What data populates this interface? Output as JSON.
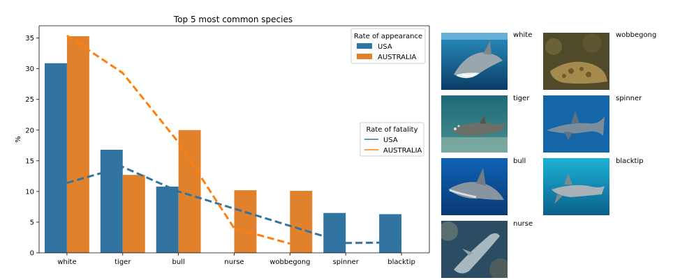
{
  "chart_data": {
    "type": "bar",
    "title": "Top 5 most common species",
    "xlabel": "",
    "ylabel": "%",
    "ylim": [
      0,
      37
    ],
    "yticks": [
      0,
      5,
      10,
      15,
      20,
      25,
      30,
      35
    ],
    "categories": [
      "white",
      "tiger",
      "bull",
      "nurse",
      "wobbegong",
      "spinner",
      "blacktip"
    ],
    "bar_series": [
      {
        "name": "USA",
        "color": "#3274a1",
        "values": [
          30.9,
          16.8,
          10.8,
          null,
          null,
          6.5,
          6.3
        ]
      },
      {
        "name": "AUSTRALIA",
        "color": "#e1812c",
        "values": [
          35.3,
          12.7,
          20.0,
          10.2,
          10.1,
          null,
          null
        ]
      }
    ],
    "line_series": [
      {
        "name": "USA",
        "color": "#3274a1",
        "values": [
          11.4,
          14.0,
          10.0,
          null,
          null,
          1.6,
          1.7
        ]
      },
      {
        "name": "AUSTRALIA",
        "color": "#ff7f0e",
        "values": [
          35.4,
          29.3,
          18.0,
          4.0,
          1.5,
          null,
          null
        ]
      }
    ],
    "legend_bars": {
      "title": "Rate of appearance",
      "placement": "top-right",
      "entries": [
        "USA",
        "AUSTRALIA"
      ]
    },
    "legend_lines": {
      "title": "Rate of fatality",
      "placement": "center-right",
      "entries": [
        "USA",
        "AUSTRALIA"
      ]
    },
    "grid": false
  },
  "gallery": [
    {
      "label": "white",
      "scene": "white-shark"
    },
    {
      "label": "wobbegong",
      "scene": "wobbegong-shark"
    },
    {
      "label": "tiger",
      "scene": "tiger-shark"
    },
    {
      "label": "spinner",
      "scene": "spinner-shark"
    },
    {
      "label": "bull",
      "scene": "bull-shark"
    },
    {
      "label": "blacktip",
      "scene": "blacktip-shark"
    },
    {
      "label": "nurse",
      "scene": "nurse-shark"
    }
  ]
}
